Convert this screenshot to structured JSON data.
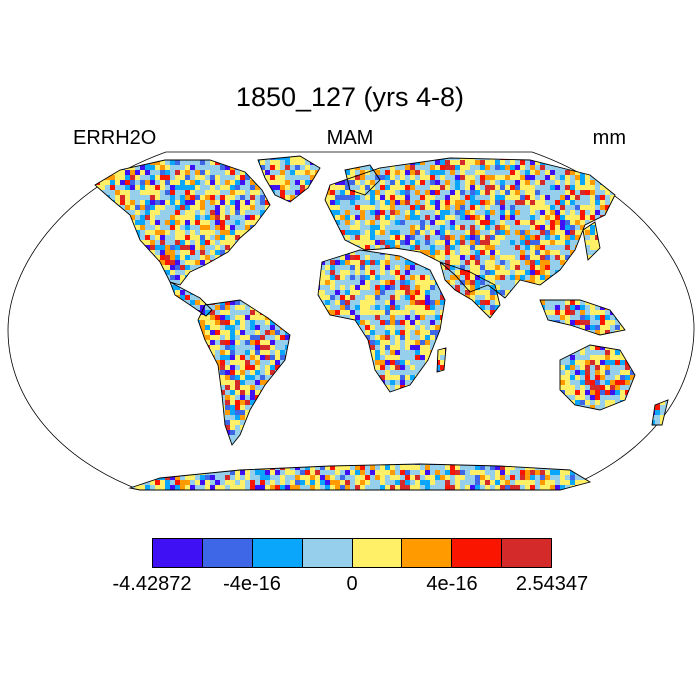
{
  "title": "1850_127 (yrs 4-8)",
  "left_label": "ERRH2O",
  "center_label": "MAM",
  "right_label": "mm",
  "colorbar": {
    "colors": [
      "#4010f5",
      "#3d67e6",
      "#0aa6fb",
      "#96cfec",
      "#fff067",
      "#ff9b00",
      "#fa1500",
      "#d52a2a"
    ],
    "labels": [
      "-4.42872",
      "-4e-16",
      "0",
      "4e-16",
      "2.54347"
    ]
  },
  "map": {
    "projection": "robinson",
    "field": "ERRH2O",
    "season": "MAM",
    "units": "mm",
    "land_only": true
  }
}
